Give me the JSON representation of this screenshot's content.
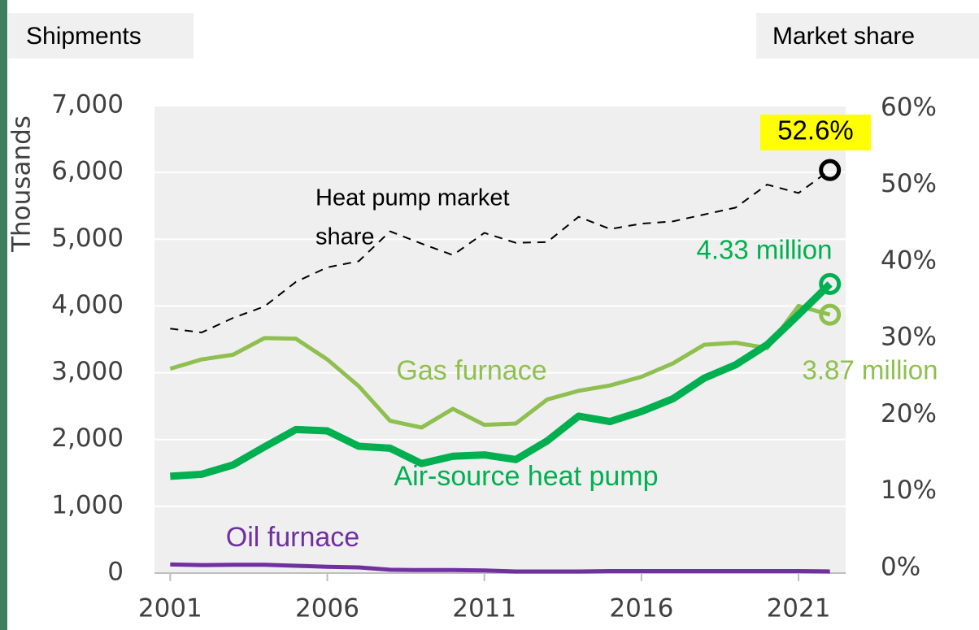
{
  "chart_data": {
    "type": "line",
    "y_title": "Shipments",
    "y2_title": "Market share",
    "y_unit": "Thousands",
    "x": [
      2001,
      2002,
      2003,
      2004,
      2005,
      2006,
      2007,
      2008,
      2009,
      2010,
      2011,
      2012,
      2013,
      2014,
      2015,
      2016,
      2017,
      2018,
      2019,
      2020,
      2021,
      2022
    ],
    "xlim": [
      2000.5,
      2022.5
    ],
    "xticks": [
      2001,
      2006,
      2011,
      2016,
      2021
    ],
    "ylim": [
      0,
      7000
    ],
    "yticks": [
      0,
      {
        "value": 1000,
        "label": "1,000"
      },
      {
        "value": 2000,
        "label": "2,000"
      },
      {
        "value": 3000,
        "label": "3,000"
      },
      {
        "value": 4000,
        "label": "4,000"
      },
      {
        "value": 5000,
        "label": "5,000"
      },
      {
        "value": 6000,
        "label": "6,000"
      },
      {
        "value": 7000,
        "label": "7,000"
      }
    ],
    "y2lim": [
      0,
      61
    ],
    "y2ticks": [
      {
        "value": 0,
        "label": "0%"
      },
      {
        "value": 10,
        "label": "10%"
      },
      {
        "value": 20,
        "label": "20%"
      },
      {
        "value": 30,
        "label": "30%"
      },
      {
        "value": 40,
        "label": "40%"
      },
      {
        "value": 50,
        "label": "50%"
      },
      {
        "value": 60,
        "label": "60%"
      }
    ],
    "grid": true,
    "series": [
      {
        "name": "Gas furnace",
        "color": "#8fbf4f",
        "width": 5,
        "values": [
          3060,
          3200,
          3270,
          3520,
          3510,
          3200,
          2800,
          2280,
          2180,
          2460,
          2220,
          2240,
          2600,
          2730,
          2810,
          2940,
          3140,
          3420,
          3450,
          3370,
          4000,
          3870
        ],
        "end_label": "3.87 million"
      },
      {
        "name": "Air-source heat pump",
        "color": "#00b050",
        "width": 9,
        "values": [
          1450,
          1480,
          1620,
          1890,
          2150,
          2130,
          1900,
          1870,
          1640,
          1750,
          1770,
          1700,
          1980,
          2350,
          2270,
          2420,
          2610,
          2920,
          3120,
          3420,
          3870,
          4330
        ],
        "end_label": "4.33 million"
      },
      {
        "name": "Oil furnace",
        "color": "#7030a0",
        "width": 5,
        "values": [
          130,
          120,
          125,
          125,
          110,
          95,
          85,
          50,
          45,
          45,
          40,
          25,
          25,
          25,
          30,
          30,
          30,
          30,
          30,
          30,
          30,
          25
        ]
      },
      {
        "name": [
          "Heat pump market",
          "share"
        ],
        "color": "#000000",
        "width": 2,
        "dash": true,
        "axis": "y2",
        "values": [
          31.9,
          31.4,
          33.3,
          34.8,
          38.0,
          39.9,
          40.7,
          44.6,
          43.0,
          41.5,
          44.4,
          43.1,
          43.2,
          46.5,
          44.9,
          45.6,
          45.9,
          46.8,
          47.7,
          50.7,
          49.6,
          52.6
        ],
        "end_label": "52.6%"
      }
    ]
  }
}
